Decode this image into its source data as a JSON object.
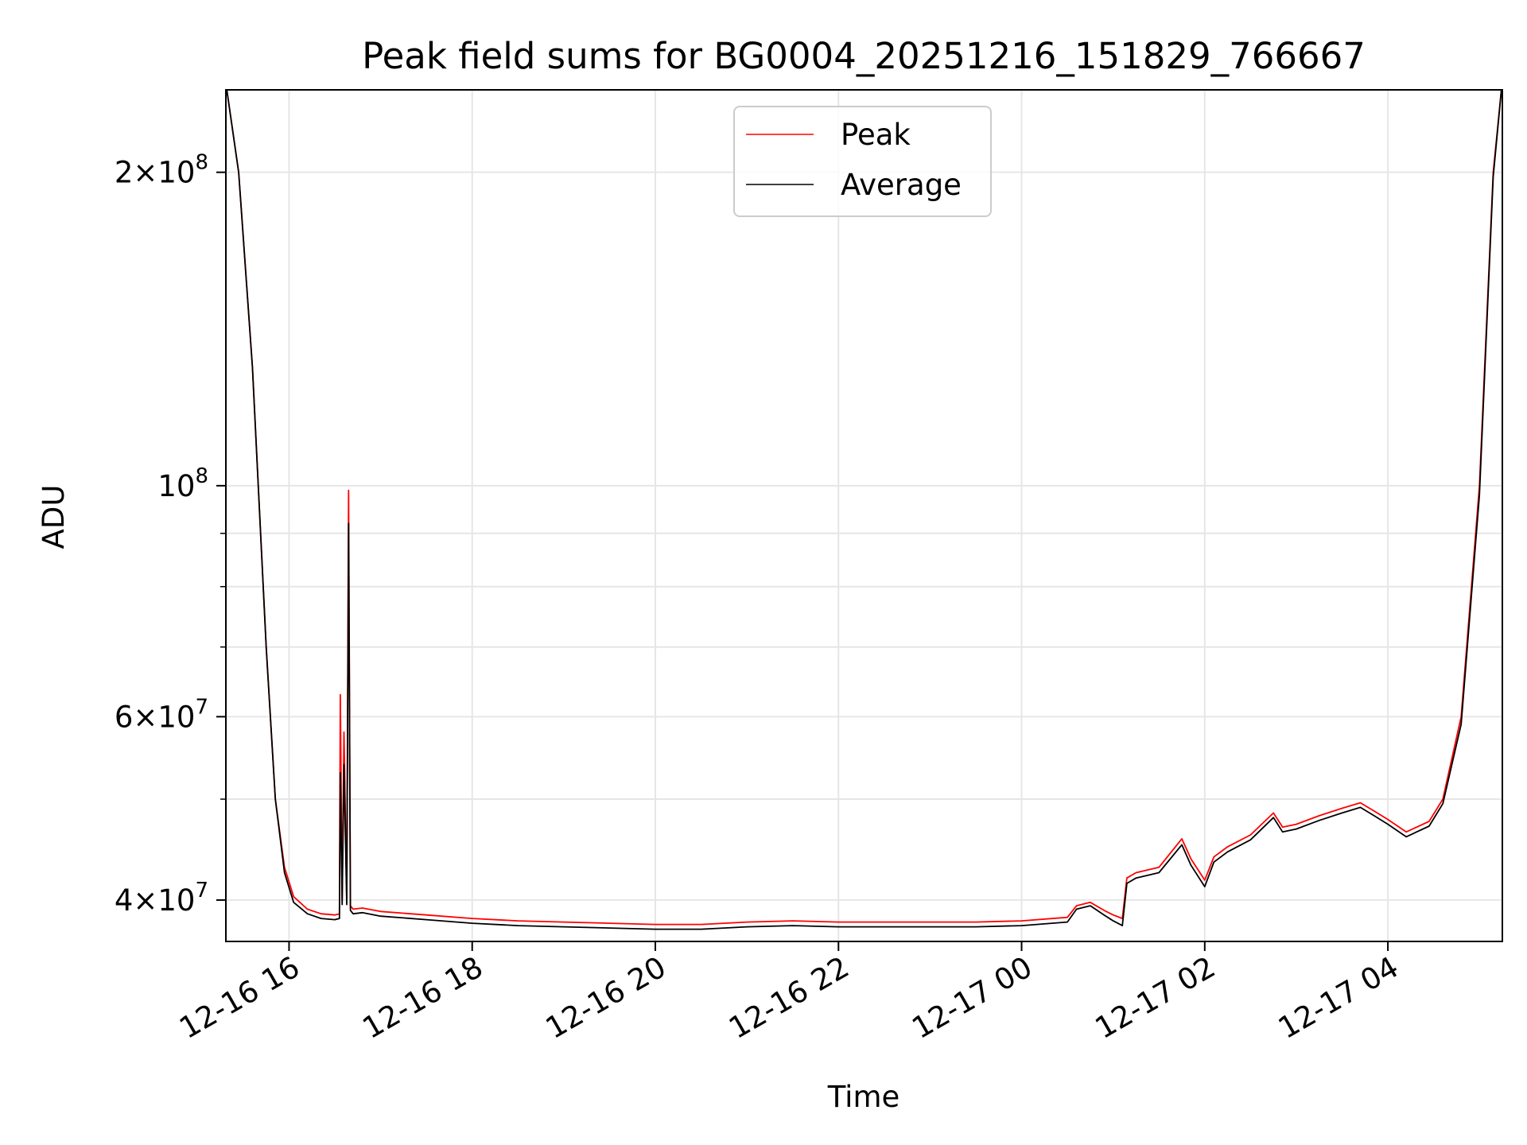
{
  "chart_data": {
    "type": "line",
    "title": "Peak field sums for BG0004_20251216_151829_766667",
    "xlabel": "Time",
    "ylabel": "ADU",
    "yscale": "log",
    "ylim": [
      36500000,
      240000000
    ],
    "xlim_hours": [
      15.31,
      5.25
    ],
    "grid": true,
    "legend_position": "upper center",
    "x_ticks": [
      {
        "label": "12-16 16",
        "hour": 16
      },
      {
        "label": "12-16 18",
        "hour": 18
      },
      {
        "label": "12-16 20",
        "hour": 20
      },
      {
        "label": "12-16 22",
        "hour": 22
      },
      {
        "label": "12-17 00",
        "hour": 24
      },
      {
        "label": "12-17 02",
        "hour": 26
      },
      {
        "label": "12-17 04",
        "hour": 28
      }
    ],
    "y_ticks": [
      {
        "mantissa": "4",
        "exponent": "7",
        "value": 40000000
      },
      {
        "mantissa": "6",
        "exponent": "7",
        "value": 60000000
      },
      {
        "mantissa": "",
        "exponent": "8",
        "value": 100000000
      },
      {
        "mantissa": "2",
        "exponent": "8",
        "value": 200000000
      }
    ],
    "y_minor_ticks": [
      50000000,
      70000000,
      80000000,
      90000000
    ],
    "x_values_hours": [
      15.32,
      15.45,
      15.6,
      15.75,
      15.85,
      15.95,
      16.05,
      16.2,
      16.35,
      16.5,
      16.55,
      16.56,
      16.58,
      16.6,
      16.63,
      16.65,
      16.67,
      16.7,
      16.8,
      17.0,
      17.5,
      18.0,
      18.5,
      19.0,
      19.5,
      20.0,
      20.5,
      21.0,
      21.5,
      22.0,
      22.5,
      23.0,
      23.5,
      24.0,
      24.5,
      24.6,
      24.75,
      24.9,
      25.0,
      25.1,
      25.15,
      25.25,
      25.5,
      25.75,
      25.85,
      26.0,
      26.1,
      26.25,
      26.5,
      26.75,
      26.85,
      27.0,
      27.25,
      27.5,
      27.7,
      27.85,
      28.0,
      28.2,
      28.45,
      28.6,
      28.8,
      29.0,
      29.15,
      29.24
    ],
    "series": [
      {
        "name": "Peak",
        "color": "#ff0000",
        "values": [
          240000000,
          200000000,
          130000000,
          70000000,
          50000000,
          43000000,
          40300000,
          39200000,
          38800000,
          38700000,
          38800000,
          63000000,
          40000000,
          58000000,
          40000000,
          99000000,
          39500000,
          39200000,
          39300000,
          39000000,
          38700000,
          38400000,
          38200000,
          38100000,
          38000000,
          37900000,
          37900000,
          38100000,
          38200000,
          38100000,
          38100000,
          38100000,
          38100000,
          38200000,
          38500000,
          39500000,
          39800000,
          39100000,
          38700000,
          38400000,
          42000000,
          42500000,
          43000000,
          45800000,
          43800000,
          41800000,
          44000000,
          45000000,
          46200000,
          48500000,
          47000000,
          47300000,
          48200000,
          49000000,
          49600000,
          48700000,
          47800000,
          46500000,
          47600000,
          50000000,
          60000000,
          100000000,
          200000000,
          240000000
        ]
      },
      {
        "name": "Average",
        "color": "#000000",
        "values": [
          240000000,
          200000000,
          130000000,
          70000000,
          50000000,
          42500000,
          39800000,
          38800000,
          38400000,
          38300000,
          38400000,
          53000000,
          39600000,
          54000000,
          39600000,
          92000000,
          39100000,
          38800000,
          38900000,
          38600000,
          38300000,
          38000000,
          37800000,
          37700000,
          37600000,
          37500000,
          37500000,
          37700000,
          37800000,
          37700000,
          37700000,
          37700000,
          37700000,
          37800000,
          38100000,
          39200000,
          39500000,
          38700000,
          38200000,
          37800000,
          41500000,
          42000000,
          42500000,
          45200000,
          43200000,
          41200000,
          43500000,
          44500000,
          45700000,
          48000000,
          46500000,
          46800000,
          47700000,
          48500000,
          49100000,
          48200000,
          47300000,
          46000000,
          47100000,
          49500000,
          59000000,
          98000000,
          198000000,
          240000000
        ]
      }
    ]
  }
}
